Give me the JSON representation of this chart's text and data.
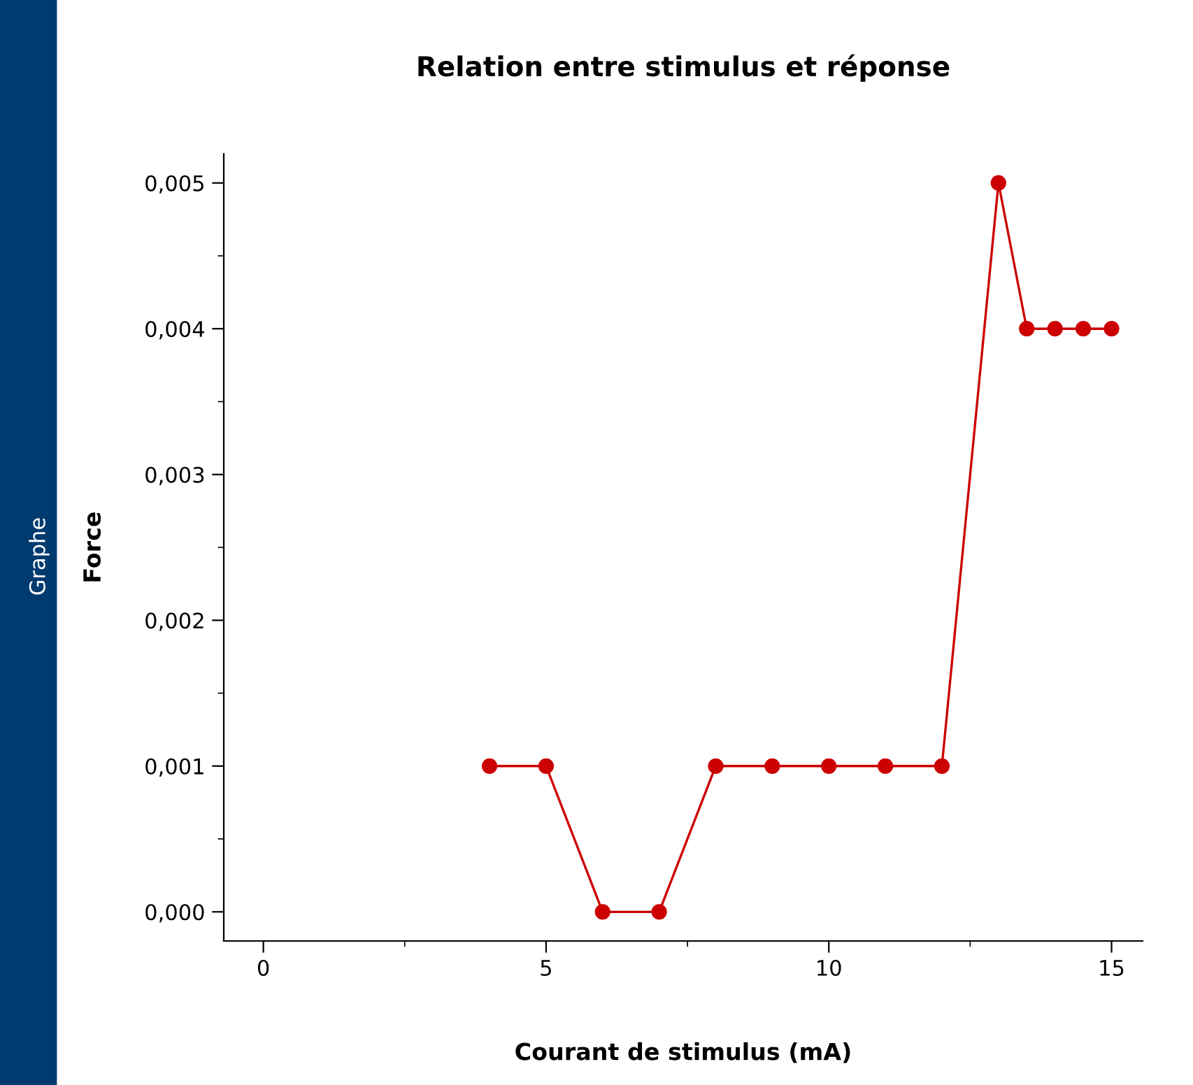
{
  "chart_data": {
    "type": "line",
    "title": "Relation entre stimulus et réponse",
    "xlabel": "Courant de stimulus (mA)",
    "ylabel": "Force",
    "annotations": [
      "Graphe"
    ],
    "x": [
      4,
      5,
      6,
      7,
      8,
      9,
      10,
      11,
      12,
      13,
      13.5,
      14,
      14.5,
      15
    ],
    "series": [
      {
        "color": "#cc0000",
        "values": [
          0.001,
          0.001,
          0,
          0,
          0.001,
          0.001,
          0.001,
          0.001,
          0.001,
          0.005,
          0.004,
          0.004,
          0.004,
          0.004
        ]
      }
    ],
    "xlim": [
      -0.7,
      15.55
    ],
    "ylim": [
      -0.0002,
      0.0052
    ],
    "xticks": [
      0,
      5,
      10,
      15
    ],
    "yticks": [
      {
        "value": 0,
        "label": "0,000"
      },
      {
        "value": 0.001,
        "label": "0,001"
      },
      {
        "value": 0.002,
        "label": "0,002"
      },
      {
        "value": 0.003,
        "label": "0,003"
      },
      {
        "value": 0.004,
        "label": "0,004"
      },
      {
        "value": 0.005,
        "label": "0,005"
      }
    ],
    "grid": false,
    "marker": "circle",
    "line_style": "solid"
  }
}
